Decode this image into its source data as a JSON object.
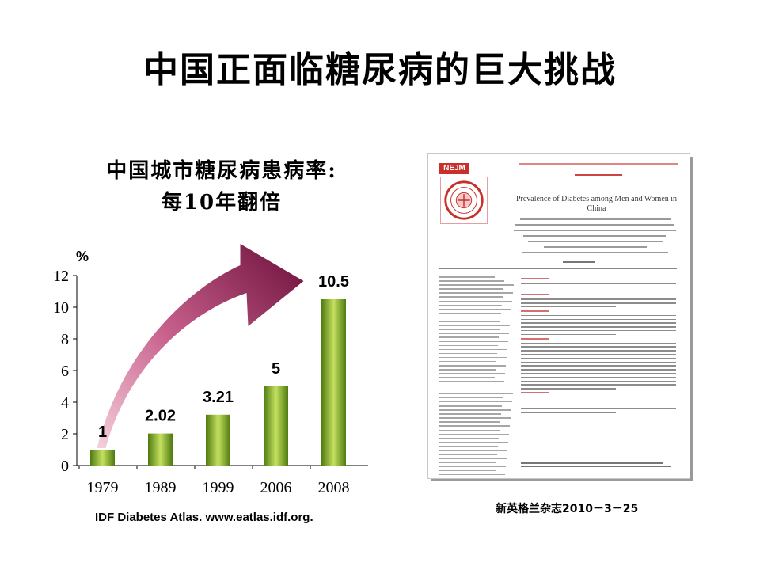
{
  "slide": {
    "title": "中国正面临糖尿病的巨大挑战",
    "chart_title_line1": "中国城市糖尿病患病率:",
    "chart_title_line2": "每10年翻倍",
    "source": "IDF Diabetes Atlas. www.eatlas.idf.org.",
    "citation": "新英格兰杂志2010－3－25"
  },
  "paper": {
    "logo_text": "NEJM",
    "title": "Prevalence of Diabetes among Men and Women in China"
  },
  "colors": {
    "bar_dark": "#4f7a10",
    "bar_light": "#c4e060",
    "arrow_dark": "#6b0f3a",
    "arrow_light": "#f4d0dc"
  },
  "chart_data": {
    "type": "bar",
    "title": "中国城市糖尿病患病率: 每10年翻倍",
    "ylabel": "%",
    "categories": [
      "1979",
      "1989",
      "1999",
      "2006",
      "2008"
    ],
    "values": [
      1,
      2.02,
      3.21,
      5,
      10.5
    ],
    "value_labels": [
      "1",
      "2.02",
      "3.21",
      "5",
      "10.5"
    ],
    "yticks": [
      0,
      2,
      4,
      6,
      8,
      10,
      12
    ],
    "ylim": [
      0,
      12
    ],
    "grid": false,
    "legend": "none",
    "annotation": "upward curved arrow"
  }
}
